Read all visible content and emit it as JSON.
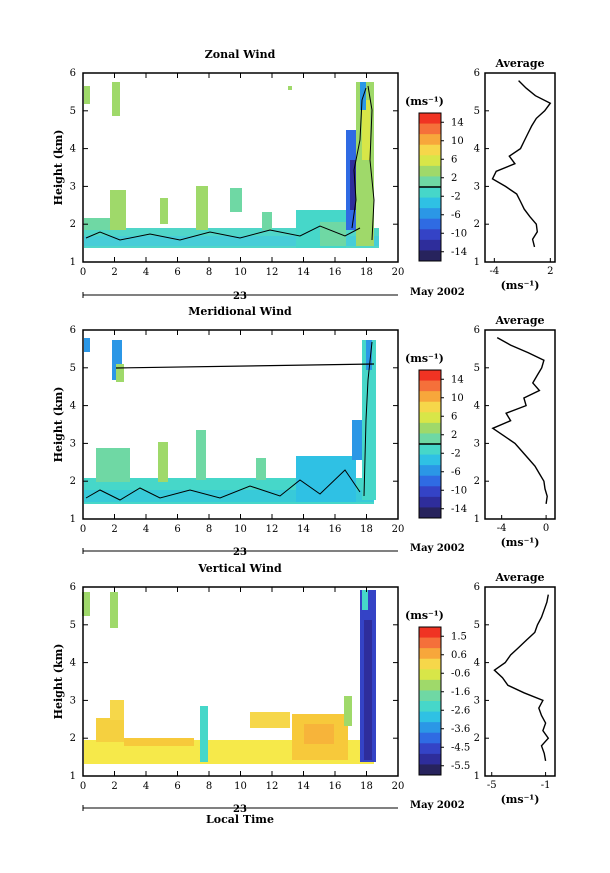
{
  "colorbars": {
    "wind": {
      "ticks": [
        "14",
        "10",
        "6",
        "2",
        "-2",
        "-6",
        "-10",
        "-14"
      ],
      "colors": [
        "#f03323",
        "#f5703a",
        "#f7a73b",
        "#f6d74a",
        "#d8e648",
        "#9fd96a",
        "#6fd8a4",
        "#46d7c9",
        "#2fc1e4",
        "#2b97e6",
        "#2f6be3",
        "#3443c6",
        "#2e2d9b",
        "#27235d"
      ]
    },
    "vertical": {
      "ticks": [
        "1.5",
        "0.6",
        "-0.6",
        "-1.6",
        "-2.6",
        "-3.6",
        "-4.5",
        "-5.5"
      ],
      "colors": [
        "#f03323",
        "#f5703a",
        "#f7a73b",
        "#f6d74a",
        "#d8e648",
        "#9fd96a",
        "#6fd8a4",
        "#46d7c9",
        "#2fc1e4",
        "#2b97e6",
        "#2f6be3",
        "#3443c6",
        "#2e2d9b",
        "#27235d"
      ]
    }
  },
  "common": {
    "ylabel": "Height (km)",
    "unit_label": "(ms⁻¹)",
    "date_label": "May 2002",
    "day_marker": "23",
    "xlabel": "Local Time",
    "xticks": [
      "0",
      "2",
      "4",
      "6",
      "8",
      "10",
      "12",
      "14",
      "16",
      "18",
      "20"
    ],
    "yticks": [
      "1",
      "2",
      "3",
      "4",
      "5",
      "6"
    ]
  },
  "chart_data": [
    {
      "type": "heatmap",
      "title": "Zonal Wind",
      "xlim": [
        0,
        20
      ],
      "ylim": [
        1,
        6
      ],
      "colorbar": "wind",
      "avg_title": "Average",
      "avg_xlim": [
        -5,
        2.5
      ],
      "avg_xticks": [
        "-4",
        "2"
      ],
      "avg_xtick_values": [
        -4,
        2
      ],
      "avg_xlabel": "(ms⁻¹)",
      "avg_profile": {
        "height": [
          1.4,
          1.6,
          1.8,
          2.0,
          2.2,
          2.4,
          2.6,
          2.8,
          3.0,
          3.2,
          3.4,
          3.6,
          3.8,
          4.0,
          4.2,
          4.4,
          4.6,
          4.8,
          5.0,
          5.2,
          5.4,
          5.6,
          5.8
        ],
        "value": [
          0.3,
          0.1,
          0.6,
          0.5,
          -0.2,
          -0.8,
          -1.2,
          -1.6,
          -2.8,
          -4.2,
          -3.8,
          -1.8,
          -2.4,
          -1.2,
          -0.8,
          -0.4,
          0.0,
          0.5,
          1.4,
          2.0,
          0.4,
          -0.6,
          -1.4
        ]
      }
    },
    {
      "type": "heatmap",
      "title": "Meridional Wind",
      "xlim": [
        0,
        20
      ],
      "ylim": [
        1,
        6
      ],
      "colorbar": "wind",
      "avg_title": "Average",
      "avg_xlim": [
        -5.5,
        0.8
      ],
      "avg_xticks": [
        "-4",
        "0"
      ],
      "avg_xtick_values": [
        -4,
        0
      ],
      "avg_xlabel": "(ms⁻¹)",
      "avg_profile": {
        "height": [
          1.4,
          1.6,
          1.8,
          2.0,
          2.2,
          2.4,
          2.6,
          2.8,
          3.0,
          3.2,
          3.4,
          3.6,
          3.8,
          4.0,
          4.2,
          4.4,
          4.6,
          4.8,
          5.0,
          5.2,
          5.4,
          5.6,
          5.8
        ],
        "value": [
          0.0,
          0.1,
          -0.1,
          -0.2,
          -0.6,
          -1.0,
          -1.6,
          -2.2,
          -2.8,
          -3.8,
          -4.8,
          -3.2,
          -3.6,
          -1.8,
          -2.0,
          -0.6,
          -1.2,
          -0.8,
          -0.4,
          -0.2,
          -1.6,
          -3.2,
          -4.4
        ]
      }
    },
    {
      "type": "heatmap",
      "title": "Vertical Wind",
      "xlim": [
        0,
        20
      ],
      "ylim": [
        1,
        6
      ],
      "colorbar": "vertical",
      "avg_title": "Average",
      "avg_xlim": [
        -5.5,
        -0.3
      ],
      "avg_xticks": [
        "-5",
        "-1"
      ],
      "avg_xtick_values": [
        -5,
        -1
      ],
      "avg_xlabel": "(ms⁻¹)",
      "avg_profile": {
        "height": [
          1.4,
          1.6,
          1.8,
          2.0,
          2.2,
          2.4,
          2.6,
          2.8,
          3.0,
          3.2,
          3.4,
          3.6,
          3.8,
          4.0,
          4.2,
          4.4,
          4.6,
          4.8,
          5.0,
          5.2,
          5.4,
          5.6,
          5.8
        ],
        "value": [
          -1.0,
          -1.1,
          -1.3,
          -0.8,
          -1.2,
          -1.0,
          -1.3,
          -1.5,
          -1.2,
          -2.6,
          -3.8,
          -4.2,
          -4.8,
          -4.0,
          -3.6,
          -3.0,
          -2.4,
          -1.8,
          -1.6,
          -1.3,
          -1.1,
          -0.9,
          -0.8
        ]
      }
    }
  ]
}
